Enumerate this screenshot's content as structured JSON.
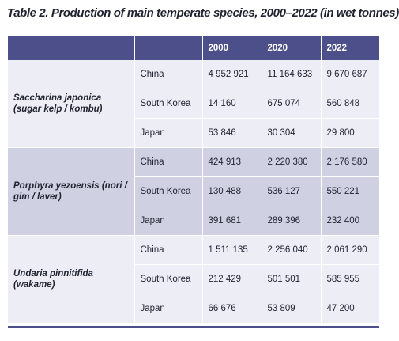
{
  "title": "Table 2. Production of main temperate species, 2000–2022 (in wet tonnes)",
  "header": {
    "species": "",
    "country": "",
    "years": [
      "2000",
      "2020",
      "2022"
    ]
  },
  "groups": [
    {
      "species": "Saccharina japonica (sugar kelp / kombu)",
      "rows": [
        {
          "country": "China",
          "values": [
            "4 952 921",
            "11 164 633",
            "9 670 687"
          ]
        },
        {
          "country": "South Korea",
          "values": [
            "14 160",
            "675 074",
            "560 848"
          ]
        },
        {
          "country": "Japan",
          "values": [
            "53 846",
            "30 304",
            "29 800"
          ]
        }
      ]
    },
    {
      "species": "Porphyra yezoensis (nori / gim / laver)",
      "rows": [
        {
          "country": "China",
          "values": [
            "424 913",
            "2 220 380",
            "2 176 580"
          ]
        },
        {
          "country": "South Korea",
          "values": [
            "130 488",
            "536 127",
            "550 221"
          ]
        },
        {
          "country": "Japan",
          "values": [
            "391 681",
            "289 396",
            "232 400"
          ]
        }
      ]
    },
    {
      "species": "Undaria pinnitifida (wakame)",
      "rows": [
        {
          "country": "China",
          "values": [
            "1 511 135",
            "2 256 040",
            "2 061 290"
          ]
        },
        {
          "country": "South Korea",
          "values": [
            "212 429",
            "501 501",
            "585 955"
          ]
        },
        {
          "country": "Japan",
          "values": [
            "66 676",
            "53 809",
            "47 200"
          ]
        }
      ]
    }
  ],
  "colors": {
    "header": "#4d4f8a",
    "band_light": "#ededf5",
    "band_dark": "#cfd0e2"
  }
}
